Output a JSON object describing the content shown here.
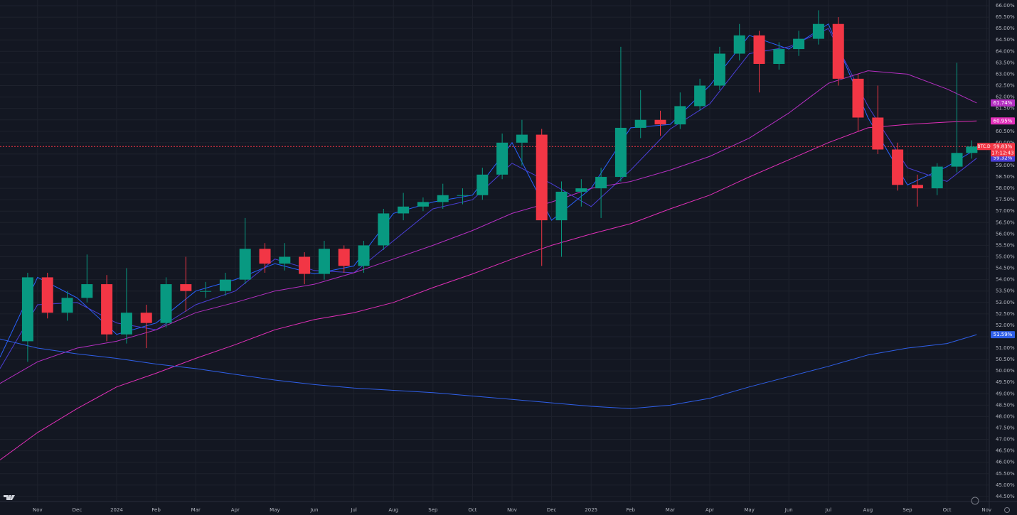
{
  "chart_data": {
    "type": "candlestick",
    "symbol": "BTC.D",
    "countdown": "17:12:43",
    "price_line": {
      "value": 59.83,
      "label": "59.83%"
    },
    "candles": {
      "x": [
        -0.25,
        0.25,
        0.75,
        1.25,
        1.75,
        2.25,
        2.75,
        3.25,
        3.75,
        4.25,
        4.75,
        5.25,
        5.75,
        6.25,
        6.75,
        7.25,
        7.75,
        8.25,
        8.75,
        9.25,
        9.75,
        10.25,
        10.75,
        11.25,
        11.75,
        12.25,
        12.75,
        13.25,
        13.75,
        14.25,
        14.75,
        15.25,
        15.75,
        16.25,
        16.75,
        17.25,
        17.75,
        18.25,
        18.75,
        19.25,
        19.75,
        20.25,
        20.75,
        21.25,
        21.75,
        22.25,
        22.75,
        23.25,
        23.625
      ],
      "open": [
        51.3,
        54.1,
        52.55,
        53.2,
        53.8,
        51.6,
        52.55,
        52.1,
        53.8,
        53.5,
        53.5,
        54.0,
        55.35,
        54.7,
        55.0,
        54.25,
        55.35,
        54.6,
        55.5,
        56.9,
        57.2,
        57.4,
        57.7,
        57.7,
        58.6,
        60.0,
        60.35,
        56.6,
        57.85,
        58.0,
        58.5,
        60.65,
        61.0,
        60.8,
        61.6,
        62.5,
        63.9,
        64.7,
        63.45,
        64.1,
        64.55,
        65.2,
        62.8,
        61.1,
        59.7,
        58.15,
        58.0,
        58.95,
        59.55
      ],
      "high": [
        54.3,
        54.3,
        53.5,
        55.1,
        54.2,
        54.5,
        52.9,
        54.1,
        55.0,
        53.9,
        54.3,
        56.7,
        55.6,
        55.6,
        55.2,
        55.7,
        55.5,
        55.7,
        57.1,
        57.8,
        57.6,
        58.2,
        58.0,
        58.9,
        60.4,
        61.0,
        60.6,
        58.3,
        58.4,
        58.9,
        64.2,
        62.3,
        61.4,
        62.2,
        62.8,
        64.2,
        65.2,
        64.9,
        64.4,
        64.9,
        65.8,
        65.5,
        63.0,
        62.5,
        60.0,
        58.6,
        59.1,
        63.5,
        60.1
      ],
      "low": [
        50.4,
        52.3,
        52.2,
        53.0,
        51.3,
        51.2,
        51.0,
        51.9,
        52.6,
        53.2,
        53.3,
        53.8,
        54.3,
        54.4,
        53.8,
        54.0,
        54.3,
        54.3,
        55.3,
        56.6,
        57.0,
        57.1,
        57.3,
        57.5,
        58.4,
        59.0,
        54.6,
        55.0,
        57.2,
        56.7,
        58.3,
        60.2,
        60.3,
        60.6,
        61.4,
        62.3,
        63.6,
        62.2,
        63.2,
        63.8,
        64.3,
        62.5,
        60.5,
        59.5,
        57.9,
        57.2,
        57.7,
        58.7,
        59.3
      ],
      "close": [
        54.1,
        52.55,
        53.2,
        53.8,
        51.6,
        52.55,
        52.1,
        53.8,
        53.5,
        53.5,
        54.0,
        55.35,
        54.7,
        55.0,
        54.25,
        55.35,
        54.6,
        55.5,
        56.9,
        57.2,
        57.4,
        57.7,
        57.7,
        58.6,
        60.0,
        60.35,
        56.6,
        57.85,
        58.0,
        58.5,
        60.65,
        61.0,
        60.8,
        61.6,
        62.5,
        63.9,
        64.7,
        63.45,
        64.1,
        64.55,
        65.2,
        62.8,
        61.1,
        59.7,
        58.15,
        58.0,
        58.95,
        59.55,
        59.83
      ],
      "up_color": "#089981",
      "down_color": "#f23645"
    },
    "ma_x": [
      -0.95,
      0,
      1,
      2,
      3,
      4,
      5,
      6,
      7,
      8,
      9,
      10,
      11,
      12,
      13,
      14,
      15,
      16,
      17,
      18,
      19,
      20,
      21,
      22,
      23,
      23.75
    ],
    "series": [
      {
        "color": "#2962ff",
        "end_label": "59.73%",
        "values": [
          50.6,
          54.1,
          53.2,
          51.6,
          52.1,
          53.5,
          54.0,
          54.7,
          54.25,
          54.6,
          56.9,
          57.4,
          57.7,
          60.0,
          56.6,
          58.0,
          60.65,
          60.8,
          62.5,
          64.7,
          64.1,
          65.2,
          61.1,
          58.15,
          58.95,
          59.73
        ]
      },
      {
        "color": "#4a3fd6",
        "end_label": "59.32%",
        "values": [
          50.1,
          52.9,
          53.0,
          52.1,
          51.8,
          52.9,
          53.5,
          54.9,
          54.4,
          54.3,
          55.7,
          57.1,
          57.5,
          59.1,
          58.2,
          57.2,
          58.8,
          60.6,
          61.7,
          63.9,
          64.2,
          65.0,
          61.6,
          58.9,
          58.3,
          59.32
        ]
      },
      {
        "color": "#b52fc2",
        "end_label": "61.74%",
        "values": [
          49.45,
          50.4,
          51.0,
          51.3,
          51.8,
          52.55,
          53.0,
          53.5,
          53.8,
          54.3,
          54.9,
          55.5,
          56.15,
          56.9,
          57.4,
          58.0,
          58.3,
          58.8,
          59.4,
          60.2,
          61.3,
          62.6,
          63.15,
          63.0,
          62.35,
          61.74
        ]
      },
      {
        "color": "#e02fb8",
        "end_label": "60.95%",
        "values": [
          46.1,
          47.3,
          48.35,
          49.3,
          49.9,
          50.55,
          51.15,
          51.8,
          52.25,
          52.55,
          53.0,
          53.65,
          54.25,
          54.9,
          55.5,
          56.0,
          56.45,
          57.1,
          57.7,
          58.5,
          59.25,
          60.0,
          60.65,
          60.8,
          60.9,
          60.95
        ]
      },
      {
        "color": "#2f5fe8",
        "end_label": "51.59%",
        "values": [
          51.4,
          51.0,
          50.75,
          50.55,
          50.3,
          50.1,
          49.85,
          49.6,
          49.4,
          49.25,
          49.15,
          49.05,
          48.9,
          48.75,
          48.6,
          48.45,
          48.35,
          48.5,
          48.8,
          49.3,
          49.75,
          50.2,
          50.7,
          51.0,
          51.2,
          51.59
        ]
      }
    ],
    "xlim": [
      -0.95,
      24.05
    ],
    "xticks": [
      {
        "value": 0,
        "label": "Nov"
      },
      {
        "value": 1,
        "label": "Dec"
      },
      {
        "value": 2,
        "label": "2024"
      },
      {
        "value": 3,
        "label": "Feb"
      },
      {
        "value": 4,
        "label": "Mar"
      },
      {
        "value": 5,
        "label": "Apr"
      },
      {
        "value": 6,
        "label": "May"
      },
      {
        "value": 7,
        "label": "Jun"
      },
      {
        "value": 8,
        "label": "Jul"
      },
      {
        "value": 9,
        "label": "Aug"
      },
      {
        "value": 10,
        "label": "Sep"
      },
      {
        "value": 11,
        "label": "Oct"
      },
      {
        "value": 12,
        "label": "Nov"
      },
      {
        "value": 13,
        "label": "Dec"
      },
      {
        "value": 14,
        "label": "2025"
      },
      {
        "value": 15,
        "label": "Feb"
      },
      {
        "value": 16,
        "label": "Mar"
      },
      {
        "value": 17,
        "label": "Apr"
      },
      {
        "value": 18,
        "label": "May"
      },
      {
        "value": 19,
        "label": "Jun"
      },
      {
        "value": 20,
        "label": "Jul"
      },
      {
        "value": 21,
        "label": "Aug"
      },
      {
        "value": 22,
        "label": "Sep"
      },
      {
        "value": 23,
        "label": "Oct"
      },
      {
        "value": 24,
        "label": "Nov"
      }
    ],
    "ylim": [
      44.31,
      66.25
    ],
    "yticks": [
      {
        "value": 44.5,
        "label": "44.50%"
      },
      {
        "value": 45,
        "label": "45.00%"
      },
      {
        "value": 45.5,
        "label": "45.50%"
      },
      {
        "value": 46,
        "label": "46.00%"
      },
      {
        "value": 46.5,
        "label": "46.50%"
      },
      {
        "value": 47,
        "label": "47.00%"
      },
      {
        "value": 47.5,
        "label": "47.50%"
      },
      {
        "value": 48,
        "label": "48.00%"
      },
      {
        "value": 48.5,
        "label": "48.50%"
      },
      {
        "value": 49,
        "label": "49.00%"
      },
      {
        "value": 49.5,
        "label": "49.50%"
      },
      {
        "value": 50,
        "label": "50.00%"
      },
      {
        "value": 50.5,
        "label": "50.50%"
      },
      {
        "value": 51,
        "label": "51.00%"
      },
      {
        "value": 51.5,
        "label": "51.50%"
      },
      {
        "value": 52,
        "label": "52.00%"
      },
      {
        "value": 52.5,
        "label": "52.50%"
      },
      {
        "value": 53,
        "label": "53.00%"
      },
      {
        "value": 53.5,
        "label": "53.50%"
      },
      {
        "value": 54,
        "label": "54.00%"
      },
      {
        "value": 54.5,
        "label": "54.50%"
      },
      {
        "value": 55,
        "label": "55.00%"
      },
      {
        "value": 55.5,
        "label": "55.50%"
      },
      {
        "value": 56,
        "label": "56.00%"
      },
      {
        "value": 56.5,
        "label": "56.50%"
      },
      {
        "value": 57,
        "label": "57.00%"
      },
      {
        "value": 57.5,
        "label": "57.50%"
      },
      {
        "value": 58,
        "label": "58.00%"
      },
      {
        "value": 58.5,
        "label": "58.50%"
      },
      {
        "value": 59,
        "label": "59.00%"
      },
      {
        "value": 59.5,
        "label": "59.50%"
      },
      {
        "value": 60,
        "label": "60.00%"
      },
      {
        "value": 60.5,
        "label": "60.50%"
      },
      {
        "value": 61,
        "label": "61.00%"
      },
      {
        "value": 61.5,
        "label": "61.50%"
      },
      {
        "value": 62,
        "label": "62.00%"
      },
      {
        "value": 62.5,
        "label": "62.50%"
      },
      {
        "value": 63,
        "label": "63.00%"
      },
      {
        "value": 63.5,
        "label": "63.50%"
      },
      {
        "value": 64,
        "label": "64.00%"
      },
      {
        "value": 64.5,
        "label": "64.50%"
      },
      {
        "value": 65,
        "label": "65.00%"
      },
      {
        "value": 65.5,
        "label": "65.50%"
      },
      {
        "value": 66,
        "label": "66.00%"
      }
    ],
    "grid": true
  }
}
